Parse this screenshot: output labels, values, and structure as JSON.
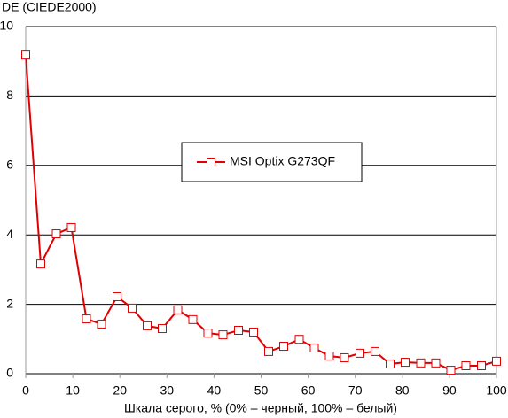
{
  "chart_data": {
    "type": "line",
    "title": "DE (CIEDE2000)",
    "x_label": "Шкала серого, % (0% – черный, 100% – белый)",
    "x": [
      0,
      3.2,
      6.5,
      9.7,
      12.9,
      16.1,
      19.4,
      22.6,
      25.8,
      29,
      32.3,
      35.5,
      38.7,
      41.9,
      45.2,
      48.4,
      51.6,
      54.8,
      58.1,
      61.3,
      64.5,
      67.7,
      71,
      74.2,
      77.4,
      80.6,
      83.9,
      87.1,
      90.3,
      93.5,
      96.8,
      100
    ],
    "series": [
      {
        "name": "MSI Optix G273QF",
        "color": "#e00000",
        "values": [
          9.18,
          3.16,
          4.03,
          4.21,
          1.58,
          1.43,
          2.22,
          1.89,
          1.38,
          1.3,
          1.84,
          1.56,
          1.17,
          1.12,
          1.25,
          1.2,
          0.64,
          0.79,
          0.99,
          0.74,
          0.51,
          0.46,
          0.59,
          0.64,
          0.28,
          0.33,
          0.31,
          0.31,
          0.1,
          0.23,
          0.23,
          0.36
        ]
      }
    ],
    "xlim": [
      0,
      100
    ],
    "xticks": [
      0,
      10,
      20,
      30,
      40,
      50,
      60,
      70,
      80,
      90,
      100
    ],
    "ylim": [
      0,
      10
    ],
    "yticks": [
      0,
      2,
      4,
      6,
      8,
      10
    ],
    "grid": true
  }
}
